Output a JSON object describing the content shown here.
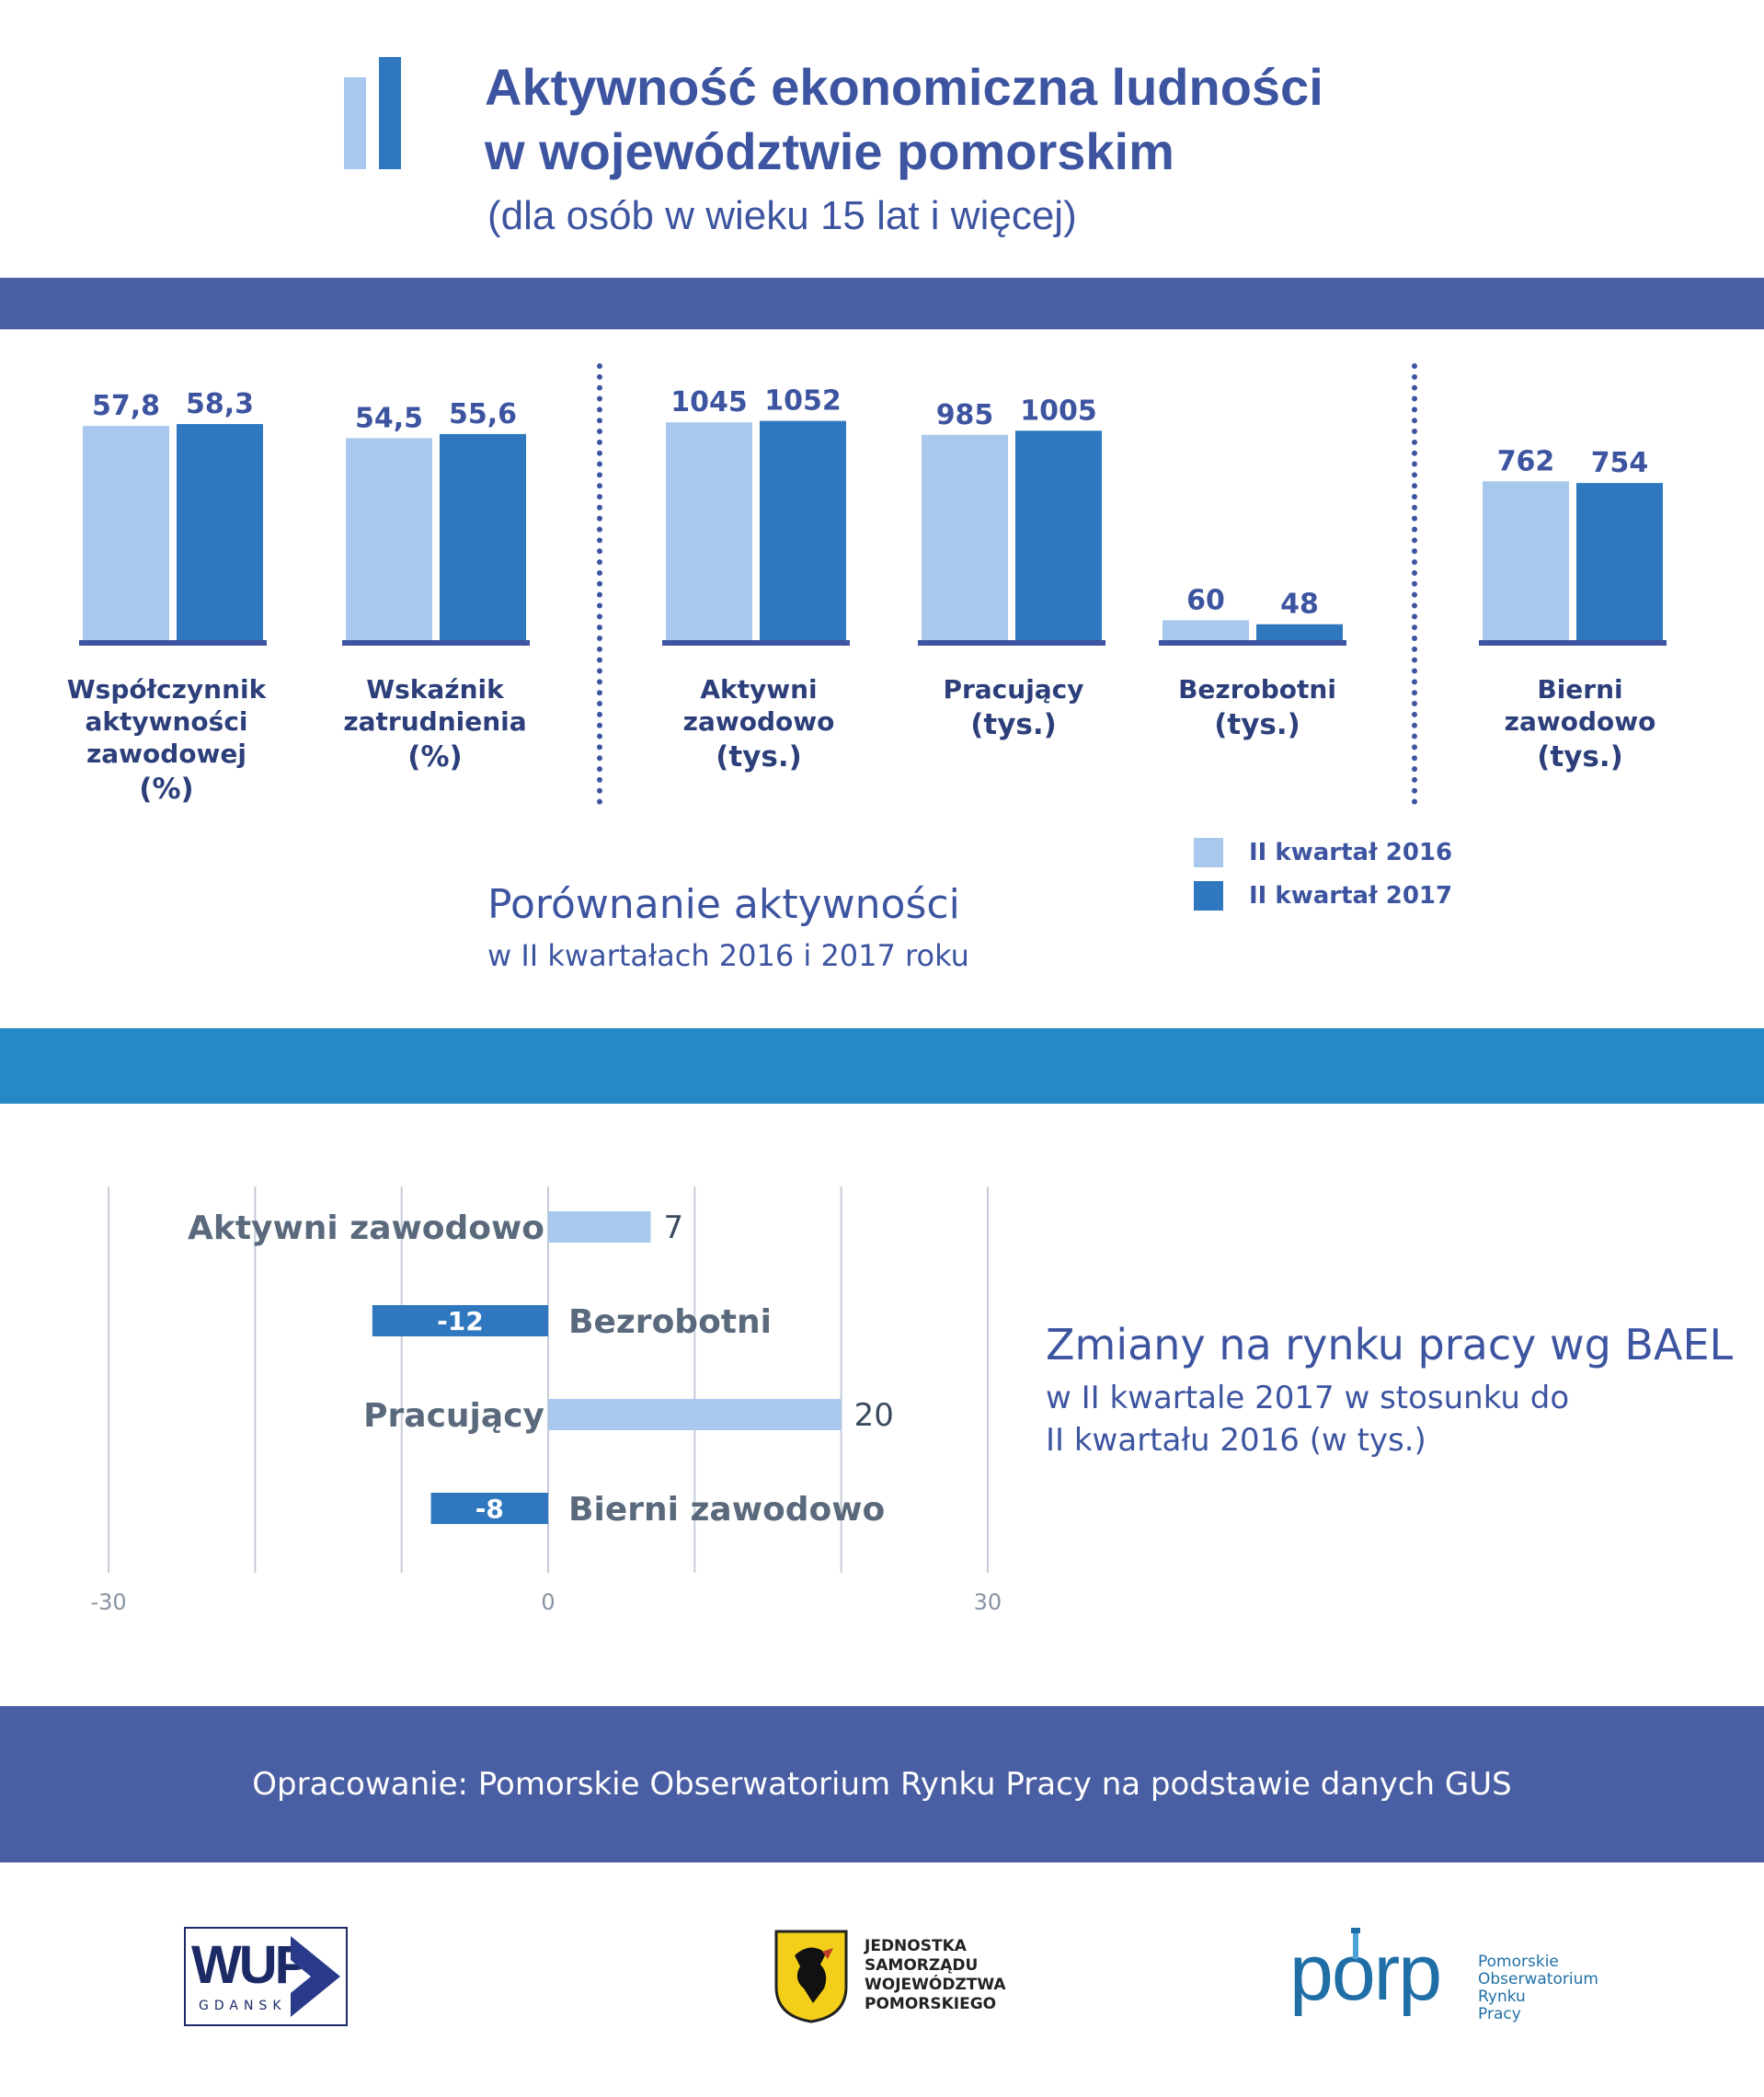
{
  "header": {
    "title_line1": "Aktywność ekonomiczna ludności",
    "title_line2": "w województwie pomorskim",
    "subtitle": "(dla osób w wieku 15 lat i więcej)"
  },
  "colors": {
    "q2016": "#a8c8ee",
    "q2017": "#2f78bf",
    "accent": "#3d54a0",
    "band_blue": "#2588c7"
  },
  "groups": [
    {
      "label_lines": [
        "Współczynnik",
        "aktywności",
        "zawodowej"
      ],
      "unit": "(%)"
    },
    {
      "label_lines": [
        "Wskaźnik",
        "zatrudnienia"
      ],
      "unit": "(%)"
    },
    {
      "label_lines": [
        "Aktywni",
        "zawodowo"
      ],
      "unit": "(tys.)"
    },
    {
      "label_lines": [
        "Pracujący"
      ],
      "unit": "(tys.)"
    },
    {
      "label_lines": [
        "Bezrobotni"
      ],
      "unit": "(tys.)"
    },
    {
      "label_lines": [
        "Bierni zawodowo"
      ],
      "unit": "(tys.)"
    }
  ],
  "legend": {
    "item1": "II kwartał 2016",
    "item2": "II kwartał 2017"
  },
  "comparison": {
    "title": "Porównanie aktywności",
    "subtitle": "w II kwartałach 2016 i 2017 roku"
  },
  "changes": {
    "title": "Zmiany na rynku pracy wg BAEL",
    "subtitle_line1": "w II kwartale 2017 w stosunku do",
    "subtitle_line2": "II kwartału 2016 (w tys.)"
  },
  "footer": {
    "text": "Opracowanie: Pomorskie Obserwatorium Rynku Pracy na podstawie danych GUS"
  },
  "logos": {
    "wup_main": "WUP",
    "wup_sub": "GDANSK",
    "samorzad": [
      "JEDNOSTKA",
      "SAMORZĄDU",
      "WOJEWÓDZTWA",
      "POMORSKIEGO"
    ],
    "porp_mark": "porp",
    "porp_text": [
      "Pomorskie",
      "Obserwatorium",
      "Rynku",
      "Pracy"
    ]
  },
  "chart_data": [
    {
      "type": "bar",
      "categories": [
        "Współczynnik aktywności zawodowej (%)",
        "Wskaźnik zatrudnienia (%)",
        "Aktywni zawodowo (tys.)",
        "Pracujący (tys.)",
        "Bezrobotni (tys.)",
        "Bierni zawodowo (tys.)"
      ],
      "series": [
        {
          "name": "II kwartał 2016",
          "values": [
            57.8,
            54.5,
            1045,
            985,
            60,
            762
          ],
          "labels": [
            "57,8",
            "54,5",
            "1045",
            "985",
            "60",
            "762"
          ]
        },
        {
          "name": "II kwartał 2017",
          "values": [
            58.3,
            55.6,
            1052,
            1005,
            48,
            754
          ],
          "labels": [
            "58,3",
            "55,6",
            "1052",
            "1005",
            "48",
            "754"
          ]
        }
      ]
    },
    {
      "type": "bar",
      "orientation": "horizontal",
      "categories": [
        "Aktywni zawodowo",
        "Bezrobotni",
        "Pracujący",
        "Bierni zawodowo"
      ],
      "values": [
        7,
        -12,
        20,
        -8
      ],
      "value_labels": [
        "7",
        "-12",
        "20",
        "-8"
      ],
      "xlim": [
        -30,
        30
      ],
      "ticks": [
        "-30",
        "0",
        "30"
      ],
      "grid": true
    }
  ]
}
